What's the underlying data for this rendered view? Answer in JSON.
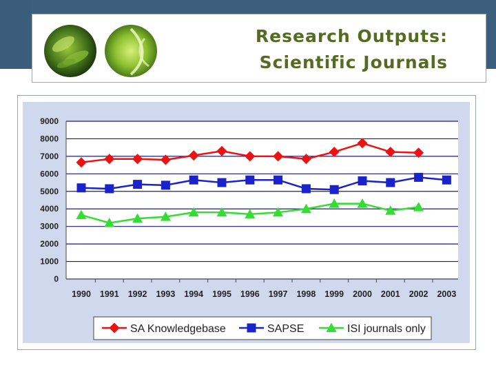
{
  "slide": {
    "title_line1": "Research Outputs:",
    "title_line2": "Scientific Journals",
    "title_color": "#556b22",
    "band_color": "#3d5f7e"
  },
  "chart_data": {
    "type": "line",
    "title": "",
    "xlabel": "",
    "ylabel": "",
    "ylim": [
      0,
      9000
    ],
    "yticks": [
      0,
      1000,
      2000,
      3000,
      4000,
      5000,
      6000,
      7000,
      8000,
      9000
    ],
    "grid": true,
    "plot_background": "#d0d8ee",
    "legend_position": "bottom",
    "categories": [
      "1990",
      "1991",
      "1992",
      "1993",
      "1994",
      "1995",
      "1996",
      "1997",
      "1998",
      "1999",
      "2000",
      "2001",
      "2002",
      "2003"
    ],
    "series": [
      {
        "name": "SA Knowledgebase",
        "color": "#ee1111",
        "marker": "diamond",
        "values": [
          6650,
          6850,
          6850,
          6800,
          7050,
          7300,
          7000,
          7000,
          6850,
          7250,
          7750,
          7250,
          7200,
          null
        ]
      },
      {
        "name": "SAPSE",
        "color": "#1a22cc",
        "marker": "square",
        "values": [
          5200,
          5150,
          5400,
          5350,
          5650,
          5500,
          5650,
          5650,
          5150,
          5100,
          5600,
          5500,
          5800,
          5650
        ]
      },
      {
        "name": "ISI journals only",
        "color": "#33dd33",
        "marker": "triangle",
        "values": [
          3650,
          3200,
          3450,
          3550,
          3800,
          3800,
          3700,
          3800,
          4000,
          4300,
          4300,
          3900,
          4100,
          null
        ]
      }
    ]
  }
}
